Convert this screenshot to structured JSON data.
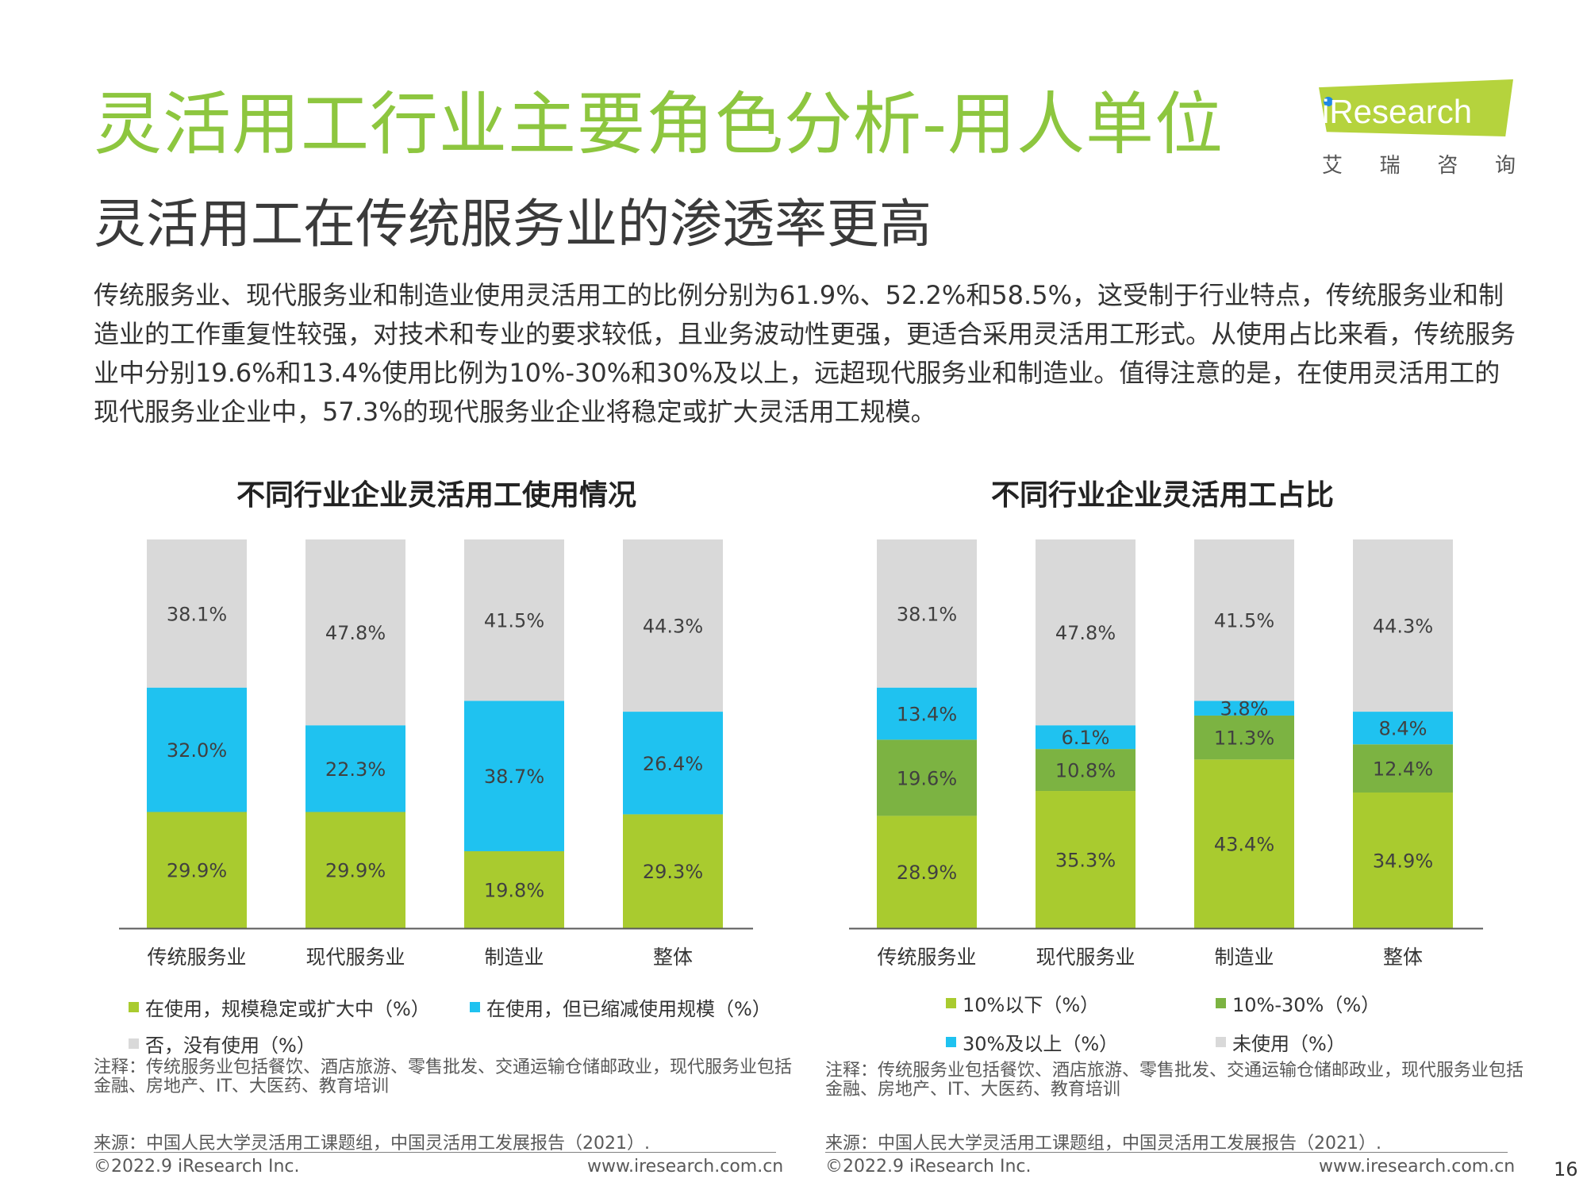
{
  "header": {
    "title": "灵活用工行业主要角色分析-用人单位",
    "subtitle": "灵活用工在传统服务业的渗透率更高",
    "intro": "传统服务业、现代服务业和制造业使用灵活用工的比例分别为61.9%、52.2%和58.5%，这受制于行业特点，传统服务业和制造业的工作重复性较强，对技术和专业的要求较低，且业务波动性更强，更适合采用灵活用工形式。从使用占比来看，传统服务业中分别19.6%和13.4%使用比例为10%-30%和30%及以上，远超现代服务业和制造业。值得注意的是，在使用灵活用工的现代服务业企业中，57.3%的现代服务业企业将稳定或扩大灵活用工规模。"
  },
  "logo": {
    "wordmark": "iResearch",
    "chinese": [
      "艾",
      "瑞",
      "咨",
      "询"
    ],
    "color": "#B5D33D"
  },
  "colors": {
    "green": "#A9CB2F",
    "dark_green": "#7CB342",
    "blue": "#1FC2F0",
    "gray": "#D9D9D9",
    "title_green": "#8DC63F"
  },
  "chart_data": [
    {
      "type": "bar",
      "stacked": true,
      "title": "不同行业企业灵活用工使用情况",
      "categories": [
        "传统服务业",
        "现代服务业",
        "制造业",
        "整体"
      ],
      "series": [
        {
          "name": "在使用，规模稳定或扩大中（%）",
          "color": "#A9CB2F",
          "values": [
            29.9,
            29.9,
            19.8,
            29.3
          ],
          "labels": [
            "29.9%",
            "29.9%",
            "19.8%",
            "29.3%"
          ]
        },
        {
          "name": "在使用，但已缩减使用规模（%）",
          "color": "#1FC2F0",
          "values": [
            32.0,
            22.3,
            38.7,
            26.4
          ],
          "labels": [
            "32.0%",
            "22.3%",
            "38.7%",
            "26.4%"
          ]
        },
        {
          "name": "否，没有使用（%）",
          "color": "#D9D9D9",
          "values": [
            38.1,
            47.8,
            41.5,
            44.3
          ],
          "labels": [
            "38.1%",
            "47.8%",
            "41.5%",
            "44.3%"
          ]
        }
      ],
      "ylim": [
        0,
        100
      ],
      "legend_position": "bottom",
      "note": "注释：传统服务业包括餐饮、酒店旅游、零售批发、交通运输仓储邮政业，现代服务业包括金融、房地产、IT、大医药、教育培训",
      "source": "来源：中国人民大学灵活用工课题组，中国灵活用工发展报告（2021）."
    },
    {
      "type": "bar",
      "stacked": true,
      "title": "不同行业企业灵活用工占比",
      "categories": [
        "传统服务业",
        "现代服务业",
        "制造业",
        "整体"
      ],
      "series": [
        {
          "name": "10%以下（%）",
          "color": "#A9CB2F",
          "values": [
            28.9,
            35.3,
            43.4,
            34.9
          ],
          "labels": [
            "28.9%",
            "35.3%",
            "43.4%",
            "34.9%"
          ]
        },
        {
          "name": "10%-30%（%）",
          "color": "#7CB342",
          "values": [
            19.6,
            10.8,
            11.3,
            12.4
          ],
          "labels": [
            "19.6%",
            "10.8%",
            "11.3%",
            "12.4%"
          ]
        },
        {
          "name": "30%及以上（%）",
          "color": "#1FC2F0",
          "values": [
            13.4,
            6.1,
            3.8,
            8.4
          ],
          "labels": [
            "13.4%",
            "6.1%",
            "3.8%",
            "8.4%"
          ]
        },
        {
          "name": "未使用（%）",
          "color": "#D9D9D9",
          "values": [
            38.1,
            47.8,
            41.5,
            44.3
          ],
          "labels": [
            "38.1%",
            "47.8%",
            "41.5%",
            "44.3%"
          ]
        }
      ],
      "ylim": [
        0,
        100
      ],
      "legend_position": "bottom",
      "note": "注释：传统服务业包括餐饮、酒店旅游、零售批发、交通运输仓储邮政业，现代服务业包括金融、房地产、IT、大医药、教育培训",
      "source": "来源：中国人民大学灵活用工课题组，中国灵活用工发展报告（2021）."
    }
  ],
  "footer": {
    "copyright": "©2022.9 iResearch Inc.",
    "website": "www.iresearch.com.cn",
    "page_number": "16"
  }
}
